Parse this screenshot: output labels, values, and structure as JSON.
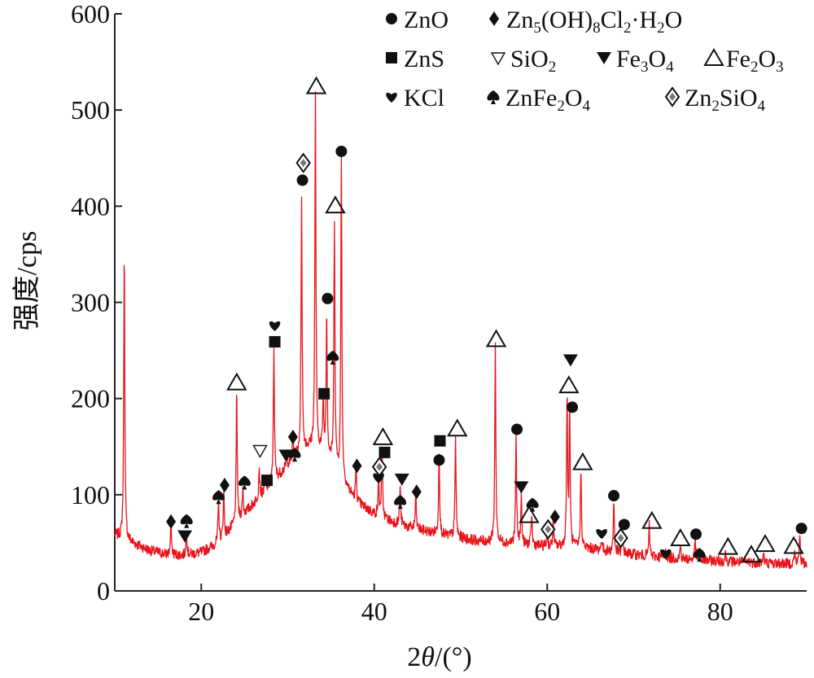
{
  "chart_data": {
    "type": "line",
    "ylabel": "强度/cps",
    "xlabel_main": "2",
    "xlabel_theta": "θ",
    "xlabel_unit": "/(°)",
    "xlim": [
      10,
      90
    ],
    "ylim": [
      0,
      600
    ],
    "x_ticks": [
      20,
      40,
      60,
      80
    ],
    "y_ticks": [
      0,
      100,
      200,
      300,
      400,
      500,
      600
    ],
    "line_color": "#e8141b",
    "grid": false,
    "legend_placement": "top-right",
    "legend": [
      {
        "marker": "circle",
        "parts": [
          [
            "ZnO",
            ""
          ]
        ]
      },
      {
        "marker": "diamond",
        "parts": [
          [
            "Zn",
            ""
          ],
          [
            "5",
            "sub"
          ],
          [
            "(OH)",
            ""
          ],
          [
            "8",
            "sub"
          ],
          [
            "Cl",
            ""
          ],
          [
            "2",
            "sub"
          ],
          [
            "·H",
            ""
          ],
          [
            "2",
            "sub"
          ],
          [
            "O",
            ""
          ]
        ]
      },
      {
        "marker": "square",
        "parts": [
          [
            "ZnS",
            ""
          ]
        ]
      },
      {
        "marker": "triangle-down-open",
        "parts": [
          [
            "SiO",
            ""
          ],
          [
            "2",
            "sub"
          ]
        ]
      },
      {
        "marker": "triangle-down",
        "parts": [
          [
            "Fe",
            ""
          ],
          [
            "3",
            "sub"
          ],
          [
            "O",
            ""
          ],
          [
            "4",
            "sub"
          ]
        ]
      },
      {
        "marker": "triangle-up-open",
        "parts": [
          [
            "Fe",
            ""
          ],
          [
            "2",
            "sub"
          ],
          [
            "O",
            ""
          ],
          [
            "3",
            "sub"
          ]
        ]
      },
      {
        "marker": "heart",
        "parts": [
          [
            "KCl",
            ""
          ]
        ]
      },
      {
        "marker": "spade",
        "parts": [
          [
            "ZnFe",
            ""
          ],
          [
            "2",
            "sub"
          ],
          [
            "O",
            ""
          ],
          [
            "4",
            "sub"
          ]
        ]
      },
      {
        "marker": "diamond-open",
        "parts": [
          [
            "Zn",
            ""
          ],
          [
            "2",
            "sub"
          ],
          [
            "SiO",
            ""
          ],
          [
            "4",
            "sub"
          ]
        ]
      }
    ],
    "baseline": [
      [
        10,
        58
      ],
      [
        12,
        50
      ],
      [
        14,
        42
      ],
      [
        16,
        38
      ],
      [
        18,
        37
      ],
      [
        20,
        40
      ],
      [
        22,
        50
      ],
      [
        24,
        70
      ],
      [
        26,
        90
      ],
      [
        28,
        110
      ],
      [
        30,
        130
      ],
      [
        31,
        140
      ],
      [
        32,
        148
      ],
      [
        33,
        150
      ],
      [
        34,
        145
      ],
      [
        35,
        135
      ],
      [
        36,
        120
      ],
      [
        37,
        105
      ],
      [
        38,
        92
      ],
      [
        40,
        80
      ],
      [
        42,
        72
      ],
      [
        44,
        66
      ],
      [
        46,
        62
      ],
      [
        48,
        58
      ],
      [
        50,
        55
      ],
      [
        52,
        52
      ],
      [
        55,
        50
      ],
      [
        58,
        48
      ],
      [
        60,
        46
      ],
      [
        62,
        46
      ],
      [
        65,
        44
      ],
      [
        68,
        40
      ],
      [
        72,
        36
      ],
      [
        76,
        33
      ],
      [
        80,
        31
      ],
      [
        85,
        29
      ],
      [
        90,
        28
      ]
    ],
    "peaks": [
      {
        "x": 11.1,
        "y": 358
      },
      {
        "x": 16.5,
        "y": 70
      },
      {
        "x": 18.3,
        "y": 62
      },
      {
        "x": 22.0,
        "y": 95
      },
      {
        "x": 22.6,
        "y": 105
      },
      {
        "x": 24.1,
        "y": 208
      },
      {
        "x": 24.8,
        "y": 105
      },
      {
        "x": 26.7,
        "y": 130
      },
      {
        "x": 27.4,
        "y": 115
      },
      {
        "x": 28.4,
        "y": 255
      },
      {
        "x": 29.9,
        "y": 140
      },
      {
        "x": 30.6,
        "y": 160
      },
      {
        "x": 31.6,
        "y": 412
      },
      {
        "x": 33.2,
        "y": 520
      },
      {
        "x": 34.1,
        "y": 202
      },
      {
        "x": 34.5,
        "y": 290
      },
      {
        "x": 35.4,
        "y": 385
      },
      {
        "x": 36.2,
        "y": 448
      },
      {
        "x": 37.9,
        "y": 130
      },
      {
        "x": 40.5,
        "y": 115
      },
      {
        "x": 40.9,
        "y": 150
      },
      {
        "x": 43.0,
        "y": 110
      },
      {
        "x": 44.8,
        "y": 100
      },
      {
        "x": 47.5,
        "y": 148
      },
      {
        "x": 49.4,
        "y": 160
      },
      {
        "x": 54.0,
        "y": 255
      },
      {
        "x": 56.4,
        "y": 160
      },
      {
        "x": 57.0,
        "y": 100
      },
      {
        "x": 58.2,
        "y": 80
      },
      {
        "x": 60.0,
        "y": 62
      },
      {
        "x": 60.7,
        "y": 72
      },
      {
        "x": 62.3,
        "y": 202
      },
      {
        "x": 62.6,
        "y": 185
      },
      {
        "x": 63.9,
        "y": 128
      },
      {
        "x": 66.3,
        "y": 55
      },
      {
        "x": 67.7,
        "y": 92
      },
      {
        "x": 68.7,
        "y": 62
      },
      {
        "x": 71.8,
        "y": 68
      },
      {
        "x": 73.7,
        "y": 40
      },
      {
        "x": 75.4,
        "y": 48
      },
      {
        "x": 77.1,
        "y": 55
      },
      {
        "x": 80.6,
        "y": 40
      },
      {
        "x": 83.3,
        "y": 32
      },
      {
        "x": 85.0,
        "y": 40
      },
      {
        "x": 88.6,
        "y": 40
      },
      {
        "x": 89.2,
        "y": 60
      }
    ],
    "annotations": [
      {
        "m": "diamond",
        "x": 16.5,
        "y": 72
      },
      {
        "m": "spade",
        "x": 18.3,
        "y": 73
      },
      {
        "m": "triangle-down",
        "x": 18.1,
        "y": 57
      },
      {
        "m": "spade",
        "x": 22.0,
        "y": 98
      },
      {
        "m": "diamond",
        "x": 22.7,
        "y": 110
      },
      {
        "m": "triangle-up-open",
        "x": 24.1,
        "y": 217
      },
      {
        "m": "spade",
        "x": 25.0,
        "y": 113
      },
      {
        "m": "triangle-down-open",
        "x": 26.8,
        "y": 146
      },
      {
        "m": "square",
        "x": 27.6,
        "y": 115
      },
      {
        "m": "heart",
        "x": 28.5,
        "y": 276
      },
      {
        "m": "square",
        "x": 28.5,
        "y": 259
      },
      {
        "m": "triangle-down",
        "x": 29.8,
        "y": 141
      },
      {
        "m": "diamond",
        "x": 30.6,
        "y": 160
      },
      {
        "m": "spade",
        "x": 30.8,
        "y": 142
      },
      {
        "m": "diamond-open",
        "x": 31.8,
        "y": 445
      },
      {
        "m": "circle",
        "x": 31.7,
        "y": 427
      },
      {
        "m": "triangle-up-open",
        "x": 33.3,
        "y": 525
      },
      {
        "m": "square",
        "x": 34.2,
        "y": 205
      },
      {
        "m": "circle",
        "x": 34.6,
        "y": 304
      },
      {
        "m": "spade",
        "x": 35.2,
        "y": 243
      },
      {
        "m": "triangle-up-open",
        "x": 35.5,
        "y": 401
      },
      {
        "m": "circle",
        "x": 36.2,
        "y": 457
      },
      {
        "m": "diamond",
        "x": 38.0,
        "y": 130
      },
      {
        "m": "diamond-open",
        "x": 40.6,
        "y": 129
      },
      {
        "m": "heart",
        "x": 40.5,
        "y": 118
      },
      {
        "m": "triangle-up-open",
        "x": 41.0,
        "y": 160
      },
      {
        "m": "square",
        "x": 41.2,
        "y": 144
      },
      {
        "m": "triangle-down",
        "x": 43.2,
        "y": 116
      },
      {
        "m": "spade",
        "x": 43.0,
        "y": 93
      },
      {
        "m": "diamond",
        "x": 44.9,
        "y": 103
      },
      {
        "m": "square",
        "x": 47.6,
        "y": 156
      },
      {
        "m": "circle",
        "x": 47.5,
        "y": 136
      },
      {
        "m": "triangle-up-open",
        "x": 49.6,
        "y": 169
      },
      {
        "m": "triangle-up-open",
        "x": 54.1,
        "y": 262
      },
      {
        "m": "circle",
        "x": 56.5,
        "y": 168
      },
      {
        "m": "triangle-down",
        "x": 57.0,
        "y": 108
      },
      {
        "m": "triangle-up-open",
        "x": 57.9,
        "y": 79
      },
      {
        "m": "spade",
        "x": 58.3,
        "y": 90
      },
      {
        "m": "diamond-open",
        "x": 60.1,
        "y": 64
      },
      {
        "m": "diamond",
        "x": 60.9,
        "y": 77
      },
      {
        "m": "triangle-down",
        "x": 62.7,
        "y": 240
      },
      {
        "m": "triangle-up-open",
        "x": 62.5,
        "y": 214
      },
      {
        "m": "circle",
        "x": 62.9,
        "y": 191
      },
      {
        "m": "triangle-up-open",
        "x": 64.1,
        "y": 134
      },
      {
        "m": "heart",
        "x": 66.3,
        "y": 60
      },
      {
        "m": "circle",
        "x": 67.7,
        "y": 99
      },
      {
        "m": "circle",
        "x": 68.9,
        "y": 69
      },
      {
        "m": "diamond-open",
        "x": 68.5,
        "y": 55
      },
      {
        "m": "triangle-up-open",
        "x": 72.1,
        "y": 73
      },
      {
        "m": "heart",
        "x": 73.7,
        "y": 39
      },
      {
        "m": "triangle-up-open",
        "x": 75.4,
        "y": 55
      },
      {
        "m": "circle",
        "x": 77.2,
        "y": 59
      },
      {
        "m": "spade",
        "x": 77.6,
        "y": 38
      },
      {
        "m": "triangle-up-open",
        "x": 80.9,
        "y": 46
      },
      {
        "m": "triangle-up-open",
        "x": 83.6,
        "y": 38
      },
      {
        "m": "triangle-up-open",
        "x": 85.2,
        "y": 49
      },
      {
        "m": "triangle-up-open",
        "x": 88.5,
        "y": 47
      },
      {
        "m": "circle",
        "x": 89.4,
        "y": 65
      }
    ]
  }
}
